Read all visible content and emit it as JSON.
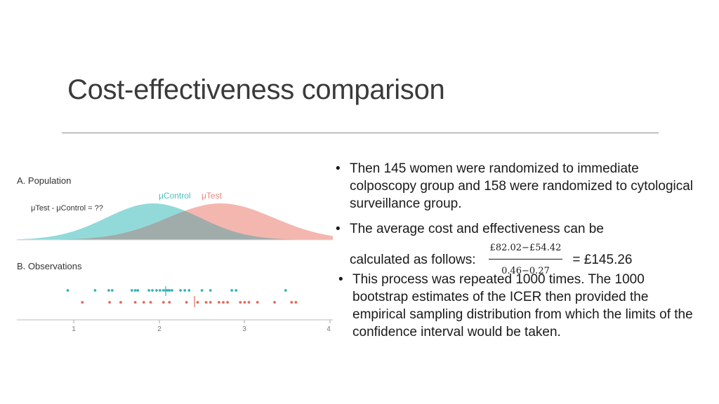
{
  "slide": {
    "title": "Cost-effectiveness comparison"
  },
  "figure": {
    "panel_a_label": "A. Population",
    "panel_b_label": "B. Observations",
    "question_text": "μTest - μControl = ??",
    "control_label": "μControl",
    "test_label": "μTest",
    "control_color": "#7fd3d3",
    "test_color": "#f1aaa2",
    "control_dot_color": "#39b3b3",
    "test_dot_color": "#de6a5c",
    "axis_ticks": [
      "1",
      "2",
      "3",
      "4"
    ]
  },
  "bullets": {
    "b1": "Then 145 women were randomized to immediate colposcopy group and 158 were randomized to cytological surveillance group.",
    "b2_line1": "The average cost and effectiveness can be",
    "b2_prefix": "calculated as follows:",
    "b2_numerator": "£82.02−£54.42",
    "b2_denominator": "0.46−0.27",
    "b2_result": "= £145.26",
    "b3": "This process was repeated 1000 times. The 1000 bootstrap estimates of the ICER then provided the empirical sampling distribution from which the limits of the confidence interval would be taken."
  }
}
